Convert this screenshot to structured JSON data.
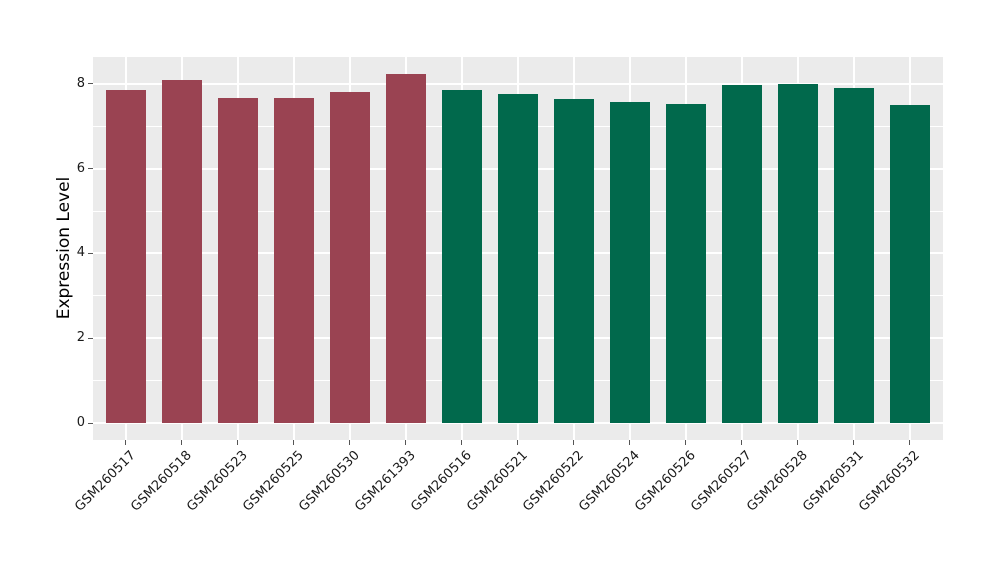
{
  "figure": {
    "background": "#ffffff",
    "panel_background": "#ebebeb",
    "grid_color": "#ffffff",
    "tick_color": "#555555",
    "axis_text_color": "#1a1a1a",
    "axis_title_color": "#000000"
  },
  "chart_data": {
    "type": "bar",
    "title": "",
    "xlabel": "",
    "ylabel": "Expression Level",
    "ylim": [
      0,
      8.63
    ],
    "grid": true,
    "legend_position": "none",
    "yticks_major": [
      0,
      2,
      4,
      6,
      8
    ],
    "yticks_minor": [
      1,
      3,
      5,
      7
    ],
    "ytick_labels": [
      "0",
      "2",
      "4",
      "6",
      "8"
    ],
    "categories": [
      "GSM260517",
      "GSM260518",
      "GSM260523",
      "GSM260525",
      "GSM260530",
      "GSM261393",
      "GSM260516",
      "GSM260521",
      "GSM260522",
      "GSM260524",
      "GSM260526",
      "GSM260527",
      "GSM260528",
      "GSM260531",
      "GSM260532"
    ],
    "values": [
      7.86,
      8.08,
      7.67,
      7.67,
      7.8,
      8.24,
      7.86,
      7.77,
      7.64,
      7.58,
      7.53,
      7.96,
      8.0,
      7.89,
      7.51
    ],
    "bar_colors": [
      "#9A4352",
      "#9A4352",
      "#9A4352",
      "#9A4352",
      "#9A4352",
      "#9A4352",
      "#01694C",
      "#01694C",
      "#01694C",
      "#01694C",
      "#01694C",
      "#01694C",
      "#01694C",
      "#01694C",
      "#01694C"
    ],
    "color_groups": [
      {
        "color": "#9A4352",
        "samples": [
          "GSM260517",
          "GSM260518",
          "GSM260523",
          "GSM260525",
          "GSM260530",
          "GSM261393"
        ]
      },
      {
        "color": "#01694C",
        "samples": [
          "GSM260516",
          "GSM260521",
          "GSM260522",
          "GSM260524",
          "GSM260526",
          "GSM260527",
          "GSM260528",
          "GSM260531",
          "GSM260532"
        ]
      }
    ]
  }
}
